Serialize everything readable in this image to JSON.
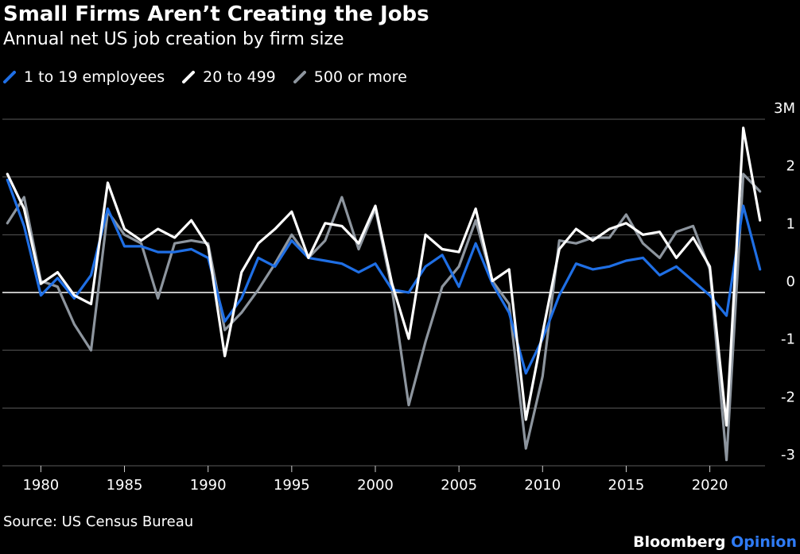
{
  "title": "Small Firms Aren’t Creating the Jobs",
  "subtitle": "Annual net US job creation by firm size",
  "source": "Source: US Census Bureau",
  "brand": {
    "name": "Bloomberg",
    "suffix": "Opinion",
    "suffix_color": "#2f7bf5"
  },
  "legend": [
    {
      "label": "1 to 19 employees",
      "color": "#1f6fe5"
    },
    {
      "label": "20 to 499",
      "color": "#ffffff"
    },
    {
      "label": "500 or more",
      "color": "#8d959e"
    }
  ],
  "chart_data": {
    "type": "line",
    "x": [
      1978,
      1979,
      1980,
      1981,
      1982,
      1983,
      1984,
      1985,
      1986,
      1987,
      1988,
      1989,
      1990,
      1991,
      1992,
      1993,
      1994,
      1995,
      1996,
      1997,
      1998,
      1999,
      2000,
      2001,
      2002,
      2003,
      2004,
      2005,
      2006,
      2007,
      2008,
      2009,
      2010,
      2011,
      2012,
      2013,
      2014,
      2015,
      2016,
      2017,
      2018,
      2019,
      2020,
      2021,
      2022,
      2023
    ],
    "series": [
      {
        "name": "1 to 19 employees",
        "color": "#1f6fe5",
        "values": [
          1.95,
          1.15,
          -0.05,
          0.25,
          -0.1,
          0.3,
          1.45,
          0.8,
          0.8,
          0.7,
          0.7,
          0.75,
          0.6,
          -0.5,
          -0.1,
          0.6,
          0.45,
          0.9,
          0.6,
          0.55,
          0.5,
          0.35,
          0.5,
          0.05,
          0.0,
          0.45,
          0.65,
          0.1,
          0.85,
          0.15,
          -0.35,
          -1.4,
          -0.8,
          -0.05,
          0.5,
          0.4,
          0.45,
          0.55,
          0.6,
          0.3,
          0.45,
          0.2,
          -0.05,
          -0.4,
          1.5,
          0.4
        ]
      },
      {
        "name": "20 to 499",
        "color": "#ffffff",
        "values": [
          2.05,
          1.45,
          0.15,
          0.35,
          -0.05,
          -0.2,
          1.9,
          1.1,
          0.9,
          1.1,
          0.95,
          1.25,
          0.8,
          -1.1,
          0.35,
          0.85,
          1.1,
          1.4,
          0.6,
          1.2,
          1.15,
          0.85,
          1.5,
          0.15,
          -0.8,
          1.0,
          0.75,
          0.7,
          1.45,
          0.2,
          0.4,
          -2.2,
          -0.7,
          0.75,
          1.1,
          0.9,
          1.1,
          1.2,
          1.0,
          1.05,
          0.6,
          0.95,
          0.45,
          -2.3,
          2.85,
          1.25
        ]
      },
      {
        "name": "500 or more",
        "color": "#8d959e",
        "values": [
          1.2,
          1.65,
          0.2,
          0.1,
          -0.55,
          -1.0,
          1.4,
          1.0,
          0.85,
          -0.1,
          0.85,
          0.9,
          0.85,
          -0.65,
          -0.35,
          0.05,
          0.5,
          1.0,
          0.6,
          0.9,
          1.65,
          0.75,
          1.45,
          0.05,
          -1.95,
          -0.85,
          0.1,
          0.45,
          1.25,
          0.2,
          -0.2,
          -2.7,
          -1.45,
          0.9,
          0.85,
          0.95,
          0.95,
          1.35,
          0.85,
          0.6,
          1.05,
          1.15,
          0.4,
          -2.9,
          2.05,
          1.75
        ]
      }
    ],
    "ylim": [
      -3,
      3
    ],
    "yticks": [
      -3,
      -2,
      -1,
      0,
      1,
      2,
      3
    ],
    "ytick_labels": [
      "-3",
      "-2",
      "-1",
      "0",
      "1",
      "2",
      "3M"
    ],
    "xticks": [
      1980,
      1985,
      1990,
      1995,
      2000,
      2005,
      2010,
      2015,
      2020
    ],
    "xlim": [
      1977.7,
      2023.3
    ],
    "xlabel": "",
    "ylabel": "",
    "grid": true
  }
}
